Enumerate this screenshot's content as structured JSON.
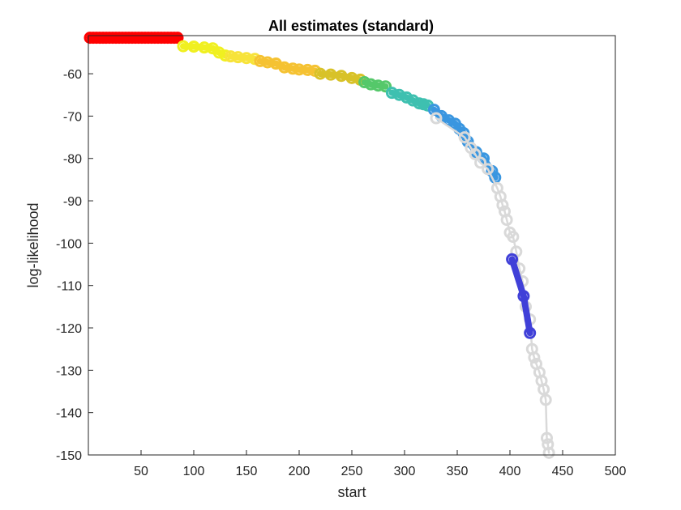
{
  "chart_data": {
    "type": "scatter",
    "title": "All estimates (standard)",
    "xlabel": "start",
    "ylabel": "log-likelihood",
    "xlim": [
      0,
      500
    ],
    "ylim": [
      -150,
      -51
    ],
    "xticks": [
      50,
      100,
      150,
      200,
      250,
      300,
      350,
      400,
      450,
      500
    ],
    "yticks": [
      -60,
      -70,
      -80,
      -90,
      -100,
      -110,
      -120,
      -130,
      -140,
      -150
    ],
    "grid": false,
    "legend": "none",
    "marker": "open-circle",
    "connecting_line_color": "#d9d9d9",
    "series": [
      {
        "color": "#ff0000",
        "x": [
          1,
          86
        ],
        "y": [
          -51.5,
          -51.5
        ]
      },
      {
        "color": "#f0f020",
        "x": [
          90,
          100,
          110,
          118,
          124,
          130
        ],
        "y": [
          -53.5,
          -53.6,
          -53.8,
          -54.0,
          -55.0,
          -55.7
        ]
      },
      {
        "color": "#f7e33a",
        "x": [
          135,
          142,
          150,
          158
        ],
        "y": [
          -55.9,
          -56.1,
          -56.3,
          -56.5
        ]
      },
      {
        "color": "#f5c232",
        "x": [
          163,
          170,
          178,
          186,
          194,
          200,
          208,
          215
        ],
        "y": [
          -57.0,
          -57.3,
          -57.6,
          -58.5,
          -58.8,
          -59.0,
          -59.1,
          -59.3
        ]
      },
      {
        "color": "#d8c228",
        "x": [
          220,
          230,
          240,
          250,
          258
        ],
        "y": [
          -60.0,
          -60.2,
          -60.5,
          -61.0,
          -61.4
        ]
      },
      {
        "color": "#55c86a",
        "x": [
          262,
          268,
          275,
          282
        ],
        "y": [
          -62.0,
          -62.5,
          -62.8,
          -63.0
        ]
      },
      {
        "color": "#3ec0b0",
        "x": [
          288,
          295,
          302,
          308,
          314,
          318,
          322
        ],
        "y": [
          -64.5,
          -65.0,
          -65.6,
          -66.3,
          -67.0,
          -67.2,
          -67.5
        ]
      },
      {
        "color": "#3a96e0",
        "x": [
          328,
          335,
          342,
          348,
          352,
          356,
          360,
          368,
          375,
          383,
          386
        ],
        "y": [
          -68.5,
          -70.0,
          -71.0,
          -71.8,
          -73.0,
          -74.0,
          -76.0,
          -78.5,
          -80.0,
          -83.0,
          -84.5
        ]
      },
      {
        "color": "#d9d9d9",
        "x": [
          330,
          357,
          363,
          367,
          372,
          379,
          388,
          391,
          393,
          395,
          397,
          400,
          403,
          406,
          409,
          412,
          415,
          419,
          421,
          423,
          425,
          428,
          430,
          432,
          434,
          435,
          436,
          437
        ],
        "y": [
          -70.5,
          -75.0,
          -77.5,
          -79.0,
          -81.0,
          -82.5,
          -87.0,
          -89.0,
          -91.0,
          -92.5,
          -94.5,
          -97.5,
          -98.5,
          -102.0,
          -106.0,
          -109.0,
          -115.0,
          -118.0,
          -125.0,
          -127.0,
          -128.5,
          -130.5,
          -132.5,
          -134.5,
          -137.0,
          -146.0,
          -147.5,
          -149.5
        ]
      },
      {
        "color": "#4040d8",
        "x": [
          402,
          413,
          419
        ],
        "y": [
          -103.8,
          -112.5,
          -121.2
        ]
      }
    ]
  }
}
